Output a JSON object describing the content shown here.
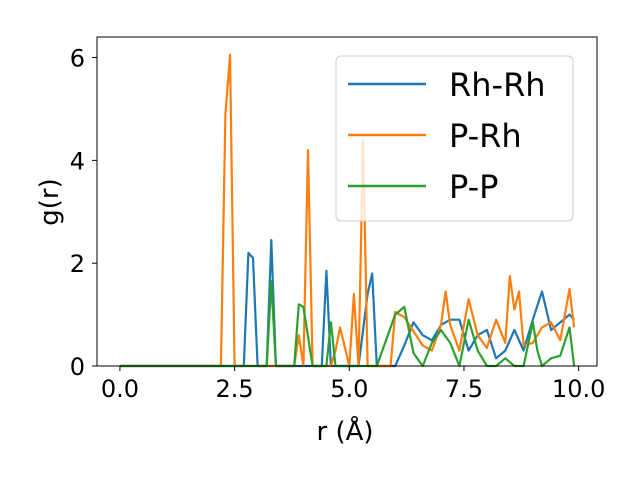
{
  "chart_data": {
    "type": "line",
    "title": "",
    "xlabel": "r (Å)",
    "ylabel": "g(r)",
    "xlim": [
      -0.5,
      10.4
    ],
    "ylim": [
      0,
      6.4
    ],
    "xticks": [
      0.0,
      2.5,
      5.0,
      7.5,
      10.0
    ],
    "xtick_labels": [
      "0.0",
      "2.5",
      "5.0",
      "7.5",
      "10.0"
    ],
    "yticks": [
      0,
      2,
      4,
      6
    ],
    "ytick_labels": [
      "0",
      "2",
      "4",
      "6"
    ],
    "grid": false,
    "legend": {
      "position": "top-right"
    },
    "series": [
      {
        "name": "Rh-Rh",
        "color": "#1f77b4",
        "x": [
          0.0,
          2.6,
          2.7,
          2.8,
          2.9,
          3.0,
          3.2,
          3.3,
          3.4,
          4.0,
          4.2,
          4.3,
          4.4,
          4.5,
          4.6,
          4.7,
          4.8,
          5.2,
          5.4,
          5.5,
          5.6,
          6.0,
          6.2,
          6.4,
          6.6,
          6.8,
          7.0,
          7.2,
          7.4,
          7.6,
          7.8,
          8.0,
          8.2,
          8.4,
          8.6,
          8.8,
          9.0,
          9.2,
          9.4,
          9.6,
          9.8,
          9.9
        ],
        "y": [
          0,
          0,
          0,
          2.2,
          2.1,
          0,
          0,
          2.45,
          0,
          0,
          0,
          0,
          0,
          1.85,
          0,
          0,
          0,
          0,
          1.4,
          1.8,
          0,
          0,
          0.4,
          0.85,
          0.6,
          0.5,
          0.8,
          0.9,
          0.9,
          0.3,
          0.6,
          0.7,
          0.15,
          0.3,
          0.7,
          0.3,
          0.9,
          1.45,
          0.7,
          0.85,
          1.0,
          0.9
        ]
      },
      {
        "name": "P-Rh",
        "color": "#ff7f0e",
        "x": [
          0.0,
          2.2,
          2.3,
          2.4,
          2.5,
          3.8,
          3.9,
          4.0,
          4.1,
          4.2,
          4.3,
          4.6,
          4.7,
          4.8,
          5.0,
          5.1,
          5.2,
          5.3,
          5.4,
          5.5,
          5.9,
          6.0,
          6.2,
          6.6,
          6.8,
          7.0,
          7.1,
          7.2,
          7.4,
          7.6,
          7.8,
          8.0,
          8.2,
          8.4,
          8.5,
          8.6,
          8.7,
          8.8,
          9.0,
          9.2,
          9.4,
          9.6,
          9.8,
          9.9
        ],
        "y": [
          0,
          0,
          4.9,
          6.05,
          0,
          0,
          0.6,
          0,
          4.2,
          0,
          0,
          0,
          0.3,
          0.75,
          0,
          1.4,
          0,
          4.4,
          0,
          0,
          0,
          1.05,
          0.95,
          0.4,
          0.3,
          0.8,
          1.45,
          0.8,
          0.3,
          1.3,
          0.6,
          0.35,
          0.9,
          0.45,
          1.75,
          1.1,
          1.45,
          0.4,
          0.45,
          0.75,
          0.85,
          0.5,
          1.5,
          0.75
        ]
      },
      {
        "name": "P-P",
        "color": "#2ca02c",
        "x": [
          0.0,
          3.2,
          3.3,
          3.4,
          3.8,
          3.9,
          4.0,
          4.2,
          4.4,
          4.5,
          4.6,
          4.7,
          4.8,
          5.0,
          5.2,
          5.4,
          5.6,
          6.0,
          6.2,
          6.4,
          6.6,
          6.8,
          7.0,
          7.2,
          7.4,
          7.6,
          7.8,
          8.0,
          8.2,
          8.4,
          8.6,
          8.8,
          9.0,
          9.1,
          9.2,
          9.4,
          9.6,
          9.8,
          9.9
        ],
        "y": [
          0,
          0,
          1.65,
          0,
          0,
          1.2,
          1.15,
          0,
          0,
          0,
          0.85,
          0,
          0,
          0,
          0,
          0,
          0,
          1.0,
          1.15,
          0.25,
          0,
          0.45,
          0.7,
          0.45,
          0,
          0.9,
          0.3,
          0,
          0,
          0.15,
          0,
          0,
          0.85,
          0.3,
          0,
          0.15,
          0.2,
          0.75,
          0
        ]
      }
    ]
  }
}
